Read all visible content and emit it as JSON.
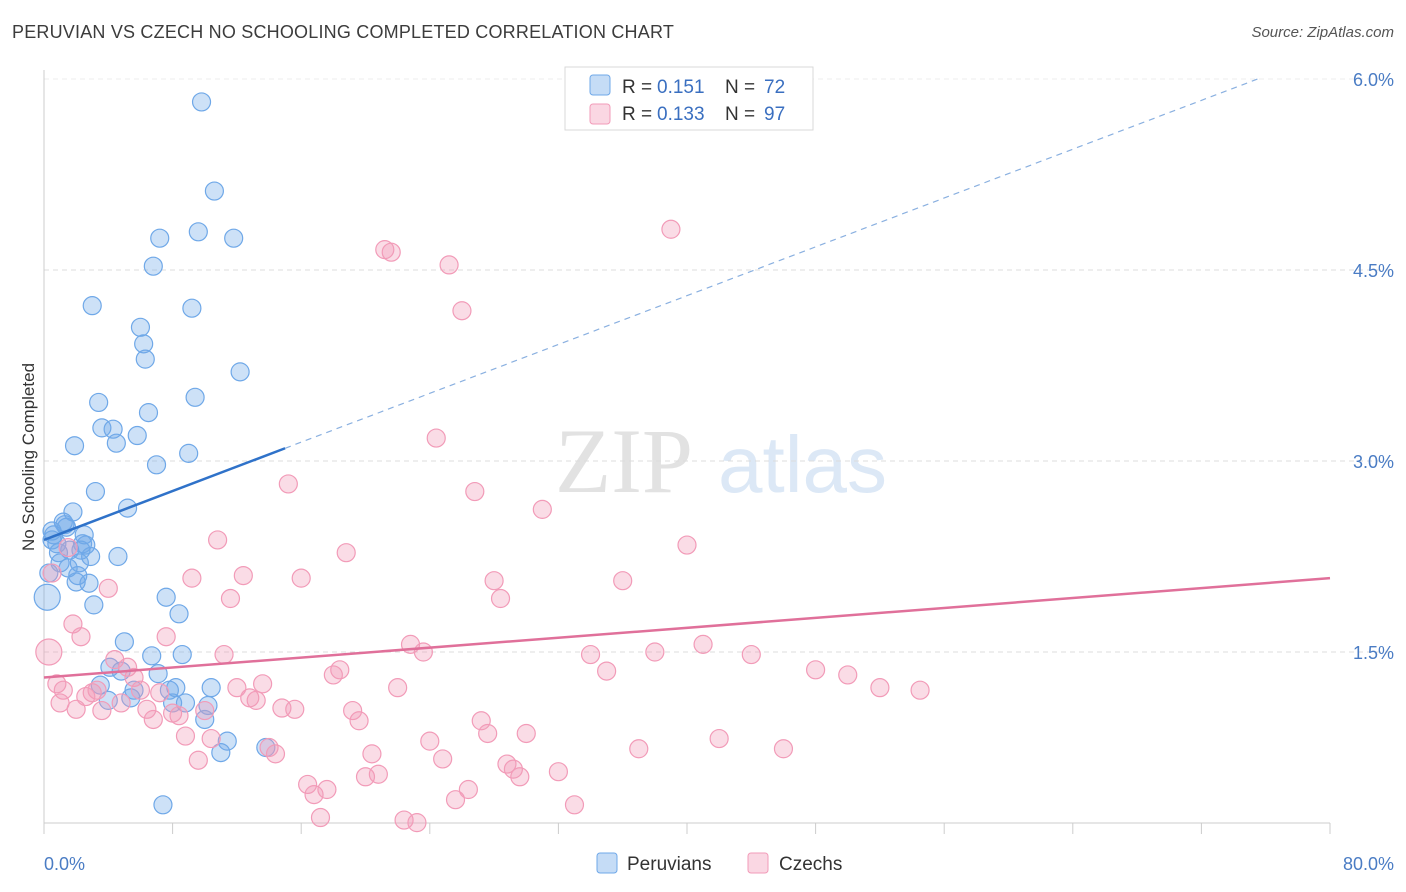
{
  "title": "PERUVIAN VS CZECH NO SCHOOLING COMPLETED CORRELATION CHART",
  "source": "Source: ZipAtlas.com",
  "watermark": {
    "zip": "ZIP",
    "atlas": "atlas"
  },
  "legend_top": [
    {
      "r_label": "R =",
      "r_value": "0.151",
      "n_label": "N =",
      "n_value": "72",
      "color": "#6fa8e8"
    },
    {
      "r_label": "R =",
      "r_value": "0.133",
      "n_label": "N =",
      "n_value": "97",
      "color": "#f29bb8"
    }
  ],
  "chart_data": {
    "type": "scatter",
    "title": "PERUVIAN VS CZECH NO SCHOOLING COMPLETED CORRELATION CHART",
    "xlabel": "",
    "ylabel": "No Schooling Completed",
    "xlim": [
      0,
      80
    ],
    "ylim": [
      0,
      6.3
    ],
    "x_tick_labels": [
      "0.0%",
      "80.0%"
    ],
    "y_ticks": [
      1.5,
      3.0,
      4.5,
      6.0
    ],
    "y_tick_labels": [
      "1.5%",
      "3.0%",
      "4.5%",
      "6.0%"
    ],
    "grid": "horizontal dashed",
    "legend_position": "bottom-center",
    "series": [
      {
        "name": "Peruvians",
        "color": "#6fa8e8",
        "trend": {
          "x": [
            0,
            15
          ],
          "y": [
            2.38,
            3.1
          ],
          "extended_x": [
            15,
            75.5
          ],
          "extended_y": [
            3.1,
            6.0
          ]
        },
        "x": [
          0.2,
          0.3,
          0.5,
          0.5,
          0.6,
          0.8,
          0.9,
          1.0,
          1.2,
          1.3,
          1.4,
          1.5,
          1.6,
          1.8,
          1.9,
          2.0,
          2.1,
          2.2,
          2.3,
          2.4,
          2.5,
          2.6,
          2.8,
          2.9,
          3.0,
          3.1,
          3.2,
          3.4,
          3.5,
          3.6,
          4.0,
          4.1,
          4.3,
          4.5,
          4.6,
          4.8,
          5.0,
          5.2,
          5.4,
          5.6,
          5.8,
          6.0,
          6.2,
          6.3,
          6.5,
          6.7,
          6.8,
          7.0,
          7.1,
          7.2,
          7.4,
          7.6,
          7.8,
          8.0,
          8.2,
          8.4,
          8.6,
          8.8,
          9.0,
          9.2,
          9.4,
          9.6,
          9.8,
          10.0,
          10.2,
          10.4,
          10.6,
          11.0,
          11.4,
          11.8,
          12.2,
          13.8
        ],
        "y": [
          1.93,
          2.12,
          2.45,
          2.38,
          2.42,
          2.35,
          2.28,
          2.2,
          2.52,
          2.5,
          2.48,
          2.16,
          2.3,
          2.6,
          3.12,
          2.05,
          2.1,
          2.2,
          2.3,
          2.35,
          2.42,
          2.34,
          2.04,
          2.25,
          4.22,
          1.87,
          2.76,
          3.46,
          1.24,
          3.26,
          1.12,
          1.38,
          3.25,
          3.14,
          2.25,
          1.35,
          1.58,
          2.63,
          1.14,
          1.2,
          3.2,
          4.05,
          3.92,
          3.8,
          3.38,
          1.47,
          4.53,
          2.97,
          1.33,
          4.75,
          0.3,
          1.93,
          1.2,
          1.1,
          1.22,
          1.8,
          1.48,
          1.1,
          3.06,
          4.2,
          3.5,
          4.8,
          5.82,
          0.97,
          1.08,
          1.22,
          5.12,
          0.71,
          0.8,
          4.75,
          3.7,
          0.75
        ],
        "note": "values estimated from pixel positions"
      },
      {
        "name": "Czechs",
        "color": "#f29bb8",
        "trend": {
          "x": [
            0,
            80
          ],
          "y": [
            1.3,
            2.08
          ]
        },
        "x": [
          0.3,
          0.5,
          0.8,
          1.0,
          1.2,
          1.5,
          1.8,
          2.0,
          2.3,
          2.6,
          3.0,
          3.3,
          3.6,
          4.0,
          4.4,
          4.8,
          5.2,
          5.6,
          6.0,
          6.4,
          6.8,
          7.2,
          7.6,
          8.0,
          8.4,
          8.8,
          9.2,
          9.6,
          10.0,
          10.4,
          10.8,
          11.2,
          11.6,
          12.0,
          12.4,
          12.8,
          13.2,
          13.6,
          14.0,
          14.4,
          14.8,
          15.2,
          15.6,
          16.0,
          16.4,
          16.8,
          17.2,
          17.6,
          18.0,
          18.4,
          18.8,
          19.2,
          19.6,
          20.0,
          20.4,
          20.8,
          21.2,
          21.6,
          22.0,
          22.4,
          22.8,
          23.2,
          23.6,
          24.0,
          24.4,
          24.8,
          25.2,
          25.6,
          26.0,
          26.4,
          26.8,
          27.2,
          27.6,
          28.0,
          28.4,
          28.8,
          29.2,
          29.6,
          30.0,
          31.0,
          32.0,
          33.0,
          34.0,
          35.0,
          36.0,
          37.0,
          38.0,
          39.0,
          40.0,
          41.0,
          42.0,
          44.0,
          46.0,
          48.0,
          50.0,
          52.0,
          54.5
        ],
        "y": [
          1.5,
          2.12,
          1.25,
          1.1,
          1.2,
          2.32,
          1.72,
          1.05,
          1.62,
          1.15,
          1.18,
          1.2,
          1.04,
          2.0,
          1.44,
          1.1,
          1.38,
          1.3,
          1.2,
          1.05,
          0.97,
          1.18,
          1.62,
          1.02,
          1.0,
          0.84,
          2.08,
          0.65,
          1.04,
          0.82,
          2.38,
          1.48,
          1.92,
          1.22,
          2.1,
          1.14,
          1.12,
          1.25,
          0.75,
          0.7,
          1.06,
          2.82,
          1.05,
          2.08,
          0.46,
          0.38,
          0.2,
          0.42,
          1.32,
          1.36,
          2.28,
          1.04,
          0.96,
          0.52,
          0.7,
          0.54,
          4.66,
          4.64,
          1.22,
          0.18,
          1.56,
          0.16,
          1.5,
          0.8,
          3.18,
          0.66,
          4.54,
          0.34,
          4.18,
          0.42,
          2.76,
          0.96,
          0.86,
          2.06,
          1.92,
          0.62,
          0.58,
          0.52,
          0.86,
          2.62,
          0.56,
          0.3,
          1.48,
          1.35,
          2.06,
          0.74,
          1.5,
          4.82,
          2.34,
          1.56,
          0.82,
          1.48,
          0.74,
          1.36,
          1.32,
          1.22,
          1.2
        ],
        "note": "values estimated from pixel positions"
      }
    ]
  }
}
